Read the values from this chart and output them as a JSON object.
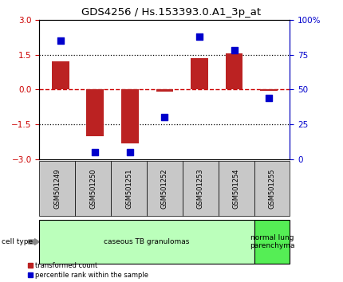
{
  "title": "GDS4256 / Hs.153393.0.A1_3p_at",
  "samples": [
    "GSM501249",
    "GSM501250",
    "GSM501251",
    "GSM501252",
    "GSM501253",
    "GSM501254",
    "GSM501255"
  ],
  "transformed_count": [
    1.2,
    -2.0,
    -2.3,
    -0.08,
    1.35,
    1.55,
    -0.05
  ],
  "percentile_rank": [
    85,
    5,
    5,
    30,
    88,
    78,
    44
  ],
  "ylim_left": [
    -3,
    3
  ],
  "ylim_right": [
    0,
    100
  ],
  "yticks_left": [
    -3,
    -1.5,
    0,
    1.5,
    3
  ],
  "yticks_right": [
    0,
    25,
    50,
    75,
    100
  ],
  "bar_color": "#bb2222",
  "scatter_color": "#0000cc",
  "zero_line_color": "#cc0000",
  "dotted_line_color": "#000000",
  "cell_type_label": "cell type",
  "cell_types": [
    {
      "label": "caseous TB granulomas",
      "n_samples": 6,
      "color": "#bbffbb"
    },
    {
      "label": "normal lung\nparenchyma",
      "n_samples": 1,
      "color": "#55ee55"
    }
  ],
  "legend_items": [
    {
      "label": "transformed count",
      "color": "#bb2222"
    },
    {
      "label": "percentile rank within the sample",
      "color": "#0000cc"
    }
  ],
  "bar_width": 0.5,
  "scatter_size": 40,
  "right_axis_color": "#0000cc",
  "left_axis_color": "#cc0000",
  "bg_color": "#ffffff",
  "label_box_color": "#c8c8c8",
  "title_fontsize": 9.5
}
